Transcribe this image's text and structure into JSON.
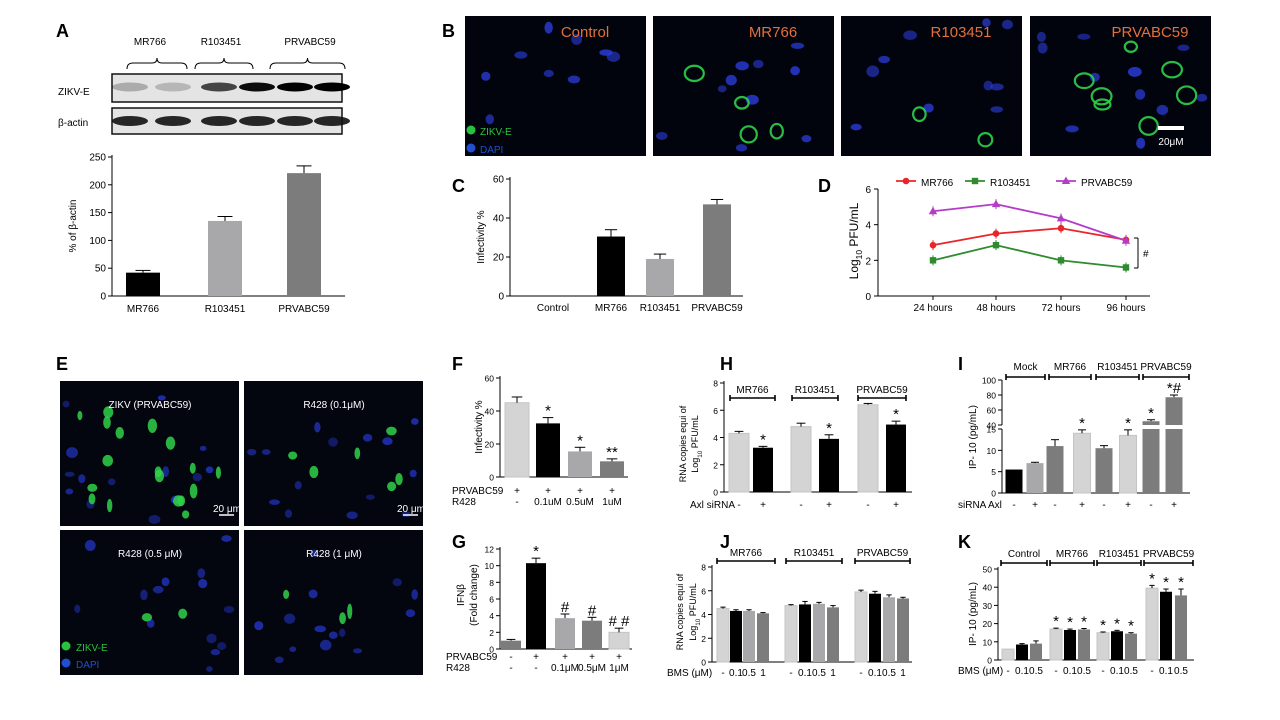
{
  "panel_letters": [
    "A",
    "B",
    "C",
    "D",
    "E",
    "F",
    "G",
    "H",
    "I",
    "J",
    "K"
  ],
  "colors": {
    "black": "#000000",
    "grey_light": "#d4d4d4",
    "grey_mid": "#a8a8aa",
    "grey_dark": "#7c7c7c",
    "series_mr766": "#e8262a",
    "series_r103451": "#2e8b2e",
    "series_prvabc59": "#b43cc8",
    "label_orange": "#e2703a",
    "zikv_green": "#29c23c",
    "dapi_blue": "#2050d0"
  },
  "panelA": {
    "blot_groups": [
      "MR766",
      "R103451",
      "PRVABC59"
    ],
    "blot_rows": [
      "ZIKV-E",
      "β-actin"
    ],
    "chart": {
      "type": "bar",
      "categories": [
        "MR766",
        "R103451",
        "PRVABC59"
      ],
      "values": [
        42,
        135,
        221
      ],
      "errors": [
        4,
        8,
        13
      ],
      "colors": [
        "#000000",
        "#a8a8aa",
        "#7c7c7c"
      ],
      "ylim": [
        0,
        250
      ],
      "yticks": [
        0,
        50,
        100,
        150,
        200,
        250
      ],
      "ylabel": "% of β-actin"
    }
  },
  "panelB": {
    "images": [
      "Control",
      "MR766",
      "R103451",
      "PRVABC59"
    ],
    "legend": [
      "ZIKV-E",
      "DAPI"
    ],
    "scale": "20μM"
  },
  "panelC": {
    "type": "bar",
    "categories": [
      "Control",
      "MR766",
      "R103451",
      "PRVABC59"
    ],
    "values": [
      0,
      30.5,
      19,
      47
    ],
    "errors": [
      0,
      3.5,
      2.5,
      2.5
    ],
    "colors": [
      "#000000",
      "#000000",
      "#a8a8aa",
      "#7c7c7c"
    ],
    "ylim": [
      0,
      60
    ],
    "yticks": [
      0,
      20,
      40,
      60
    ],
    "ylabel": "Infectivity %"
  },
  "panelD": {
    "type": "line",
    "x": [
      "24 hours",
      "48 hours",
      "72 hours",
      "96 hours"
    ],
    "series": [
      {
        "name": "MR766",
        "color": "#e8262a",
        "marker": "circle",
        "values": [
          2.85,
          3.5,
          3.8,
          3.15
        ]
      },
      {
        "name": "R103451",
        "color": "#2e8b2e",
        "marker": "square",
        "values": [
          2.0,
          2.85,
          2.0,
          1.6
        ]
      },
      {
        "name": "PRVABC59",
        "color": "#b43cc8",
        "marker": "triangle",
        "values": [
          4.75,
          5.15,
          4.35,
          3.1
        ]
      }
    ],
    "ylim": [
      0,
      6
    ],
    "yticks": [
      0,
      2,
      4,
      6
    ],
    "ylabel": "Log10 PFU/mL",
    "sig": "#"
  },
  "panelE": {
    "images": [
      "ZIKV (PRVABC59)",
      "R428 (0.1μM)",
      "R428 (0.5 μM)",
      "R428 (1 μM)"
    ],
    "scales": [
      "20 μm",
      "20 μm"
    ],
    "legend": [
      "ZIKV-E",
      "DAPI"
    ]
  },
  "panelF": {
    "type": "bar",
    "values": [
      45,
      32.5,
      15.5,
      9.5
    ],
    "errors": [
      3.5,
      3.5,
      2.5,
      1.5
    ],
    "colors": [
      "#d4d4d4",
      "#000000",
      "#a8a8aa",
      "#7c7c7c"
    ],
    "sig": [
      "",
      "*",
      "*",
      "**"
    ],
    "ylim": [
      0,
      60
    ],
    "yticks": [
      0,
      20,
      40,
      60
    ],
    "ylabel": "Infectivity %",
    "row1_label": "PRVABC59",
    "row1": [
      "+",
      "+",
      "+",
      "+"
    ],
    "row2_label": "R428",
    "row2": [
      "-",
      "0.1uM",
      "0.5uM",
      "1uM"
    ]
  },
  "panelG": {
    "type": "bar",
    "values": [
      1,
      10.3,
      3.7,
      3.4,
      2.0
    ],
    "errors": [
      0.15,
      0.6,
      0.5,
      0.4,
      0.5
    ],
    "colors": [
      "#7c7c7c",
      "#000000",
      "#a8a8aa",
      "#7c7c7c",
      "#d4d4d4"
    ],
    "sig": [
      "",
      "*",
      "#",
      "#",
      "# #"
    ],
    "ylim": [
      0,
      12
    ],
    "yticks": [
      0,
      2,
      4,
      6,
      8,
      10,
      12
    ],
    "ylabel": [
      "IFNβ",
      "(Fold change)"
    ],
    "row1_label": "PRVABC59",
    "row1": [
      "-",
      "+",
      "+",
      "+",
      "+"
    ],
    "row2_label": "R428",
    "row2": [
      "-",
      "-",
      "0.1μM",
      "0.5μM",
      "1μM"
    ]
  },
  "panelH": {
    "type": "bar",
    "groups": [
      "MR766",
      "R103451",
      "PRVABC59"
    ],
    "values": [
      4.3,
      3.25,
      4.8,
      3.9,
      6.4,
      4.95
    ],
    "errors": [
      0.15,
      0.1,
      0.25,
      0.3,
      0.1,
      0.25
    ],
    "colors": [
      "#d4d4d4",
      "#000000",
      "#d4d4d4",
      "#000000",
      "#d4d4d4",
      "#000000"
    ],
    "sig": [
      "",
      "*",
      "",
      "*",
      "",
      "*"
    ],
    "ylim": [
      0,
      8
    ],
    "yticks": [
      0,
      2,
      4,
      6,
      8
    ],
    "ylabel": [
      "RNA copies equi of",
      "Log10 PFU/mL"
    ],
    "x_label": "Axl siRNA",
    "x_signs": [
      "-",
      "+",
      "-",
      "+",
      "-",
      "+"
    ]
  },
  "panelI": {
    "type": "bar",
    "groups": [
      "Mock",
      "MR766",
      "R103451",
      "PRVABC59"
    ],
    "values": [
      5.5,
      7,
      11,
      14,
      10.5,
      13.5,
      45,
      77
    ],
    "errors": [
      0,
      0.2,
      1.5,
      0.8,
      0.6,
      1.3,
      2,
      3
    ],
    "colors": [
      "#000000",
      "#a8a8aa",
      "#7c7c7c",
      "#d4d4d4",
      "#7c7c7c",
      "#d4d4d4",
      "#7c7c7c",
      "#7c7c7c"
    ],
    "sig": [
      "",
      "",
      "",
      "*",
      "",
      "*",
      "*",
      "*#"
    ],
    "yticks_low": [
      0,
      5,
      10,
      15
    ],
    "yticks_high": [
      40,
      60,
      80,
      100
    ],
    "ylabel": "IP- 10 (pg/mL)",
    "x_label": "siRNA Axl",
    "x_signs": [
      "-",
      "+",
      "-",
      "+",
      "-",
      "+",
      "-",
      "+"
    ]
  },
  "panelJ": {
    "type": "bar",
    "groups": [
      "MR766",
      "R103451",
      "PRVABC59"
    ],
    "values": [
      4.5,
      4.3,
      4.3,
      4.1,
      4.75,
      4.85,
      4.9,
      4.6,
      5.9,
      5.75,
      5.45,
      5.35
    ],
    "errors": [
      0.12,
      0.1,
      0.1,
      0.06,
      0.08,
      0.25,
      0.12,
      0.15,
      0.15,
      0.2,
      0.2,
      0.1
    ],
    "colors": [
      "#d4d4d4",
      "#000000",
      "#a8a8aa",
      "#7c7c7c",
      "#d4d4d4",
      "#000000",
      "#a8a8aa",
      "#7c7c7c",
      "#d4d4d4",
      "#000000",
      "#a8a8aa",
      "#7c7c7c"
    ],
    "ylim": [
      0,
      8
    ],
    "yticks": [
      0,
      2,
      4,
      6,
      8
    ],
    "ylabel": [
      "RNA copies equi of",
      "Log10 PFU/mL"
    ],
    "x_label": "BMS (μM)",
    "x_doses": [
      "-",
      "0.1",
      "0.5",
      "1",
      "-",
      "0.1",
      "0.5",
      "1",
      "-",
      "0.1",
      "0.5",
      "1"
    ]
  },
  "panelK": {
    "type": "bar",
    "groups": [
      "Control",
      "MR766",
      "R103451",
      "PRVABC59"
    ],
    "values": [
      6,
      8.5,
      9,
      17,
      16.5,
      16.8,
      15,
      15.8,
      14.5,
      39.5,
      37.5,
      35.5
    ],
    "errors": [
      0,
      0.5,
      1.5,
      0.5,
      0.5,
      0.5,
      0.4,
      0.5,
      0.5,
      1.5,
      1.5,
      3.5
    ],
    "colors": [
      "#d4d4d4",
      "#000000",
      "#7c7c7c",
      "#d4d4d4",
      "#000000",
      "#7c7c7c",
      "#d4d4d4",
      "#000000",
      "#7c7c7c",
      "#d4d4d4",
      "#000000",
      "#7c7c7c"
    ],
    "sig": [
      "",
      "",
      "",
      "*",
      "*",
      "*",
      "*",
      "*",
      "*",
      "*",
      "*",
      "*"
    ],
    "ylim": [
      0,
      50
    ],
    "yticks": [
      0,
      10,
      20,
      30,
      40,
      50
    ],
    "ylabel": "IP- 10 (pg/mL)",
    "x_label": "BMS (μM)",
    "x_doses": [
      "-",
      "0.1",
      "0.5",
      "-",
      "0.1",
      "0.5",
      "-",
      "0.1",
      "0.5",
      "-",
      "0.1",
      "0.5"
    ]
  },
  "chart_data": [
    {
      "type": "bar",
      "categories": [
        "MR766",
        "R103451",
        "PRVABC59"
      ],
      "values": [
        42,
        135,
        221
      ],
      "ylim": [
        0,
        250
      ],
      "ylabel": "% of β-actin"
    },
    {
      "type": "bar",
      "categories": [
        "Control",
        "MR766",
        "R103451",
        "PRVABC59"
      ],
      "values": [
        0,
        30.5,
        19,
        47
      ],
      "ylim": [
        0,
        60
      ],
      "ylabel": "Infectivity %"
    },
    {
      "type": "line",
      "x": [
        "24 hours",
        "48 hours",
        "72 hours",
        "96 hours"
      ],
      "series": [
        {
          "name": "MR766",
          "values": [
            2.85,
            3.5,
            3.8,
            3.15
          ]
        },
        {
          "name": "R103451",
          "values": [
            2.0,
            2.85,
            2.0,
            1.6
          ]
        },
        {
          "name": "PRVABC59",
          "values": [
            4.75,
            5.15,
            4.35,
            3.1
          ]
        }
      ],
      "ylim": [
        0,
        6
      ],
      "ylabel": "Log10 PFU/mL"
    },
    {
      "type": "bar",
      "values": [
        45,
        32.5,
        15.5,
        9.5
      ],
      "ylim": [
        0,
        60
      ],
      "ylabel": "Infectivity %"
    },
    {
      "type": "bar",
      "values": [
        1,
        10.3,
        3.7,
        3.4,
        2.0
      ],
      "ylim": [
        0,
        12
      ],
      "ylabel": "IFNβ (Fold change)"
    },
    {
      "type": "bar",
      "values": [
        4.3,
        3.25,
        4.8,
        3.9,
        6.4,
        4.95
      ],
      "ylim": [
        0,
        8
      ],
      "ylabel": "RNA copies equi of Log10 PFU/mL"
    },
    {
      "type": "bar",
      "values": [
        5.5,
        7,
        11,
        14,
        10.5,
        13.5,
        45,
        77
      ],
      "ylabel": "IP- 10 (pg/mL)"
    },
    {
      "type": "bar",
      "values": [
        4.5,
        4.3,
        4.3,
        4.1,
        4.75,
        4.85,
        4.9,
        4.6,
        5.9,
        5.75,
        5.45,
        5.35
      ],
      "ylim": [
        0,
        8
      ],
      "ylabel": "RNA copies equi of Log10 PFU/mL"
    },
    {
      "type": "bar",
      "values": [
        6,
        8.5,
        9,
        17,
        16.5,
        16.8,
        15,
        15.8,
        14.5,
        39.5,
        37.5,
        35.5
      ],
      "ylim": [
        0,
        50
      ],
      "ylabel": "IP- 10 (pg/mL)"
    }
  ]
}
